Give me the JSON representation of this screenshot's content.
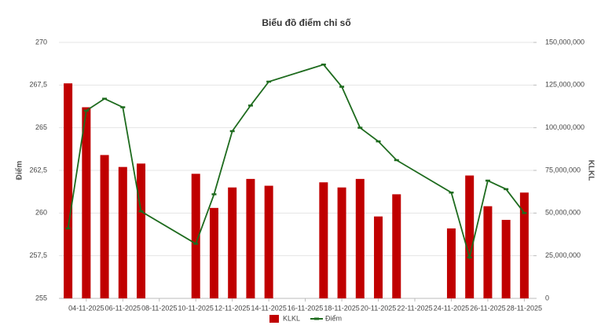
{
  "chart_data": {
    "type": "bar-line",
    "title": "Biểu đồ điểm chỉ số",
    "y_label": "Điểm",
    "y2_label": "KLKL",
    "x": [
      "03-11-2025",
      "04-11-2025",
      "05-11-2025",
      "06-11-2025",
      "07-11-2025",
      "10-11-2025",
      "11-11-2025",
      "12-11-2025",
      "13-11-2025",
      "14-11-2025",
      "17-11-2025",
      "18-11-2025",
      "19-11-2025",
      "20-11-2025",
      "21-11-2025",
      "24-11-2025",
      "25-11-2025",
      "26-11-2025",
      "27-11-2025",
      "28-11-2025"
    ],
    "xticks": [
      "04-11-2025",
      "06-11-2025",
      "08-11-2025",
      "10-11-2025",
      "12-11-2025",
      "14-11-2025",
      "16-11-2025",
      "18-11-2025",
      "20-11-2025",
      "22-11-2025",
      "24-11-2025",
      "26-11-2025",
      "28-11-2025"
    ],
    "series": [
      {
        "name": "KLKL",
        "type": "bar",
        "axis": "y2",
        "color": "#c00000",
        "values": [
          126000000,
          112000000,
          84000000,
          77000000,
          79000000,
          73000000,
          53000000,
          65000000,
          70000000,
          66000000,
          68000000,
          65000000,
          70000000,
          48000000,
          61000000,
          41000000,
          72000000,
          54000000,
          46000000,
          62000000
        ]
      },
      {
        "name": "Điểm",
        "type": "line",
        "color": "#1e6b1e",
        "values": [
          259.1,
          266.0,
          266.7,
          266.2,
          260.1,
          258.2,
          261.1,
          264.8,
          266.3,
          267.7,
          268.7,
          267.4,
          265.0,
          264.2,
          263.1,
          261.2,
          257.4,
          261.9,
          261.4,
          260.0
        ]
      }
    ],
    "ylim": [
      255,
      270
    ],
    "yticks": [
      255,
      {
        "value": 257.5,
        "label": "257,5"
      },
      260,
      {
        "value": 262.5,
        "label": "262,5"
      },
      265,
      {
        "value": 267.5,
        "label": "267,5"
      },
      270
    ],
    "y2lim": [
      0,
      150000000
    ],
    "y2ticks": [
      0,
      {
        "value": 25000000,
        "label": "25,000,000"
      },
      {
        "value": 50000000,
        "label": "50,000,000"
      },
      {
        "value": 75000000,
        "label": "75,000,000"
      },
      {
        "value": 100000000,
        "label": "100,000,000"
      },
      {
        "value": 125000000,
        "label": "125,000,000"
      },
      {
        "value": 150000000,
        "label": "150,000,000"
      }
    ],
    "grid": true,
    "legend": "bottom"
  }
}
